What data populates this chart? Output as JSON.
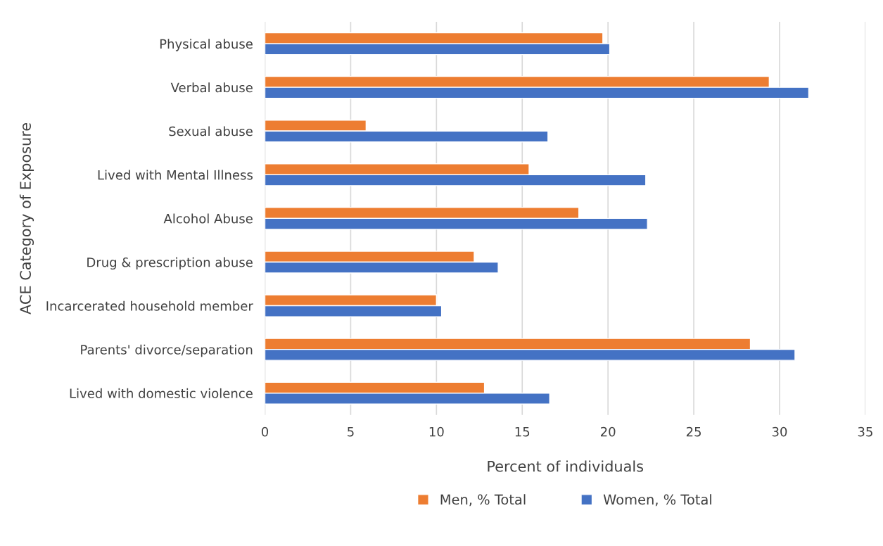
{
  "chart_data": {
    "type": "bar",
    "orientation": "horizontal",
    "xlabel": "Percent of individuals",
    "ylabel": "ACE Category of Exposure",
    "categories": [
      "Physical abuse",
      "Verbal abuse",
      "Sexual abuse",
      "Lived with Mental Illness",
      "Alcohol Abuse",
      "Drug & prescription abuse",
      "Incarcerated household member",
      "Parents' divorce/separation",
      "Lived with domestic violence"
    ],
    "series": [
      {
        "name": "Men, % Total",
        "color": "#ed7d31",
        "values": [
          19.7,
          29.4,
          5.9,
          15.4,
          18.3,
          12.2,
          10.0,
          28.3,
          12.8
        ]
      },
      {
        "name": "Women, % Total",
        "color": "#4472c4",
        "values": [
          20.1,
          31.7,
          16.5,
          22.2,
          22.3,
          13.6,
          10.3,
          30.9,
          16.6
        ]
      }
    ],
    "xlim": [
      0,
      35
    ],
    "xticks": [
      0,
      5,
      10,
      15,
      20,
      25,
      30,
      35
    ],
    "grid": "x",
    "legend": "bottom"
  }
}
